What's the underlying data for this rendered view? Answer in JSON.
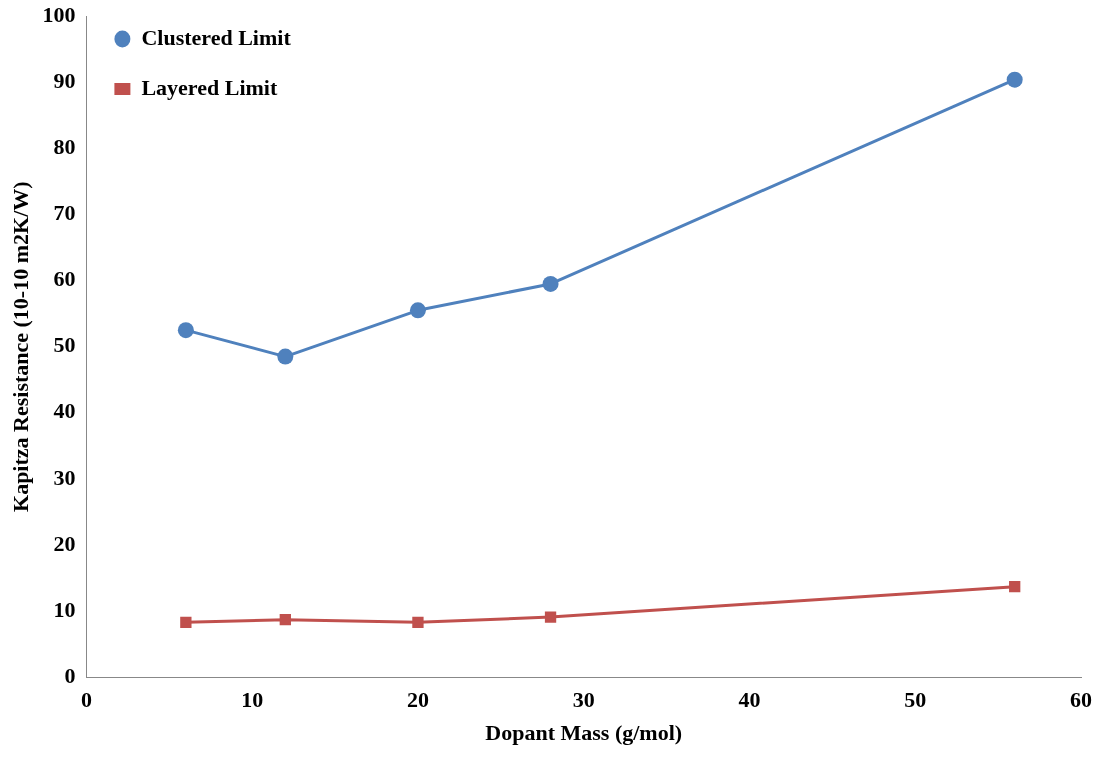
{
  "chart_data": {
    "type": "line",
    "xlabel": "Dopant Mass (g/mol)",
    "ylabel": "Kapitza Resistance (10-10 m2K/W)",
    "x": [
      6,
      12,
      20,
      28,
      56
    ],
    "series": [
      {
        "name": "Clustered Limit",
        "color": "#4f81bd",
        "marker": "circle",
        "values": [
          52.5,
          48.5,
          55.5,
          59.5,
          90.4
        ]
      },
      {
        "name": "Layered Limit",
        "color": "#c0504d",
        "marker": "square",
        "values": [
          8.3,
          8.7,
          8.3,
          9.1,
          13.7
        ]
      }
    ],
    "xlim": [
      0,
      60
    ],
    "xticks": [
      0,
      10,
      20,
      30,
      40,
      50,
      60
    ],
    "ylim": [
      0,
      100
    ],
    "yticks": [
      0,
      10,
      20,
      30,
      40,
      50,
      60,
      70,
      80,
      90,
      100
    ],
    "grid": false,
    "legend": "top left",
    "line_style": "solid"
  }
}
